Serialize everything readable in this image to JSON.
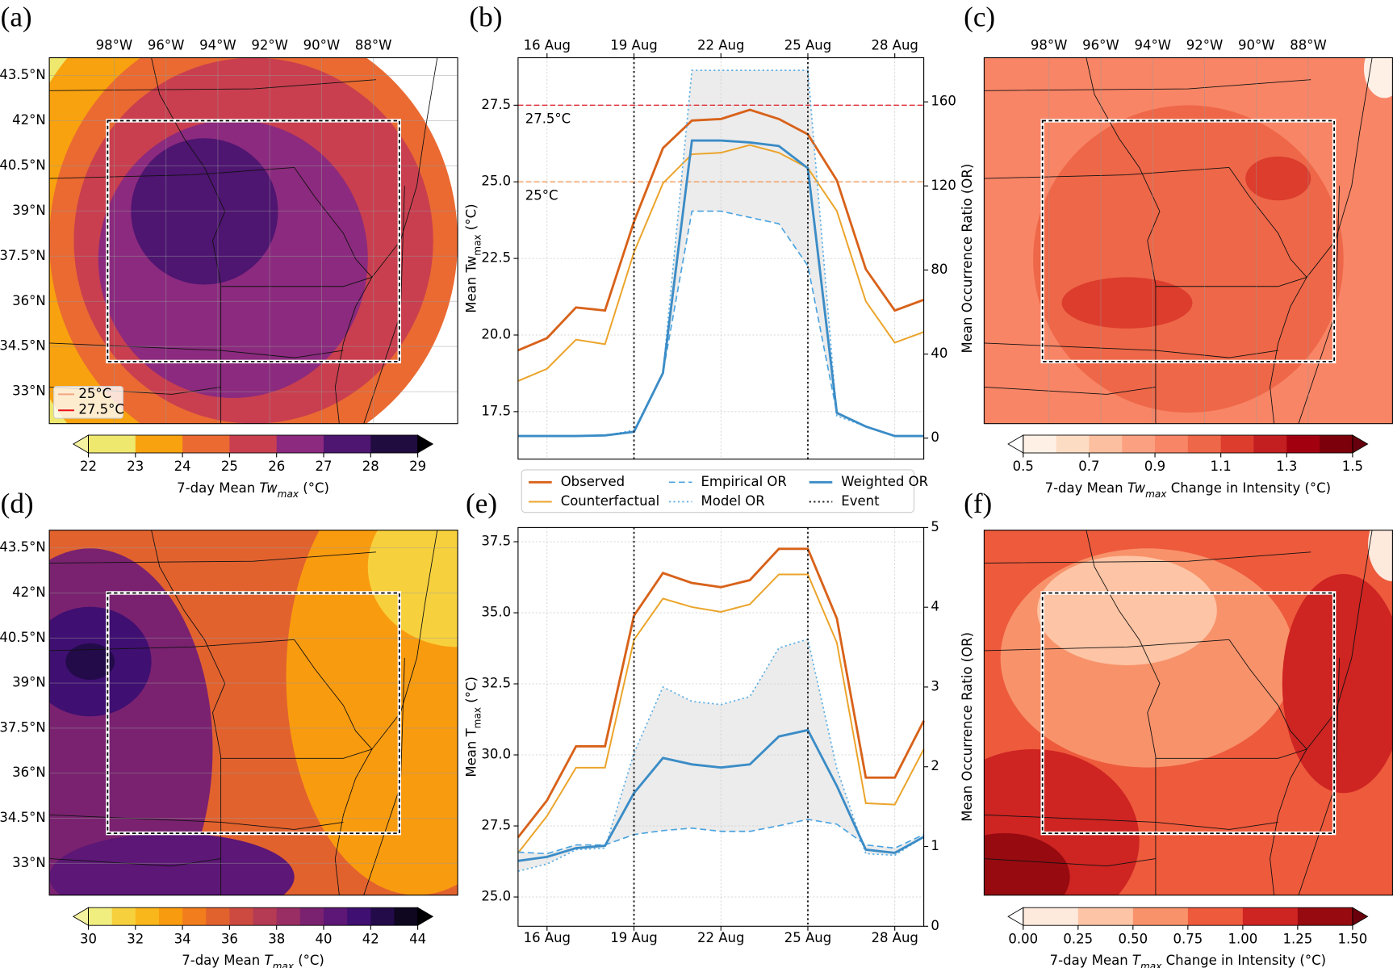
{
  "chart_data": [
    {
      "type": "map",
      "panel_label": "(a)",
      "xlim": [
        -100.5,
        -84.75
      ],
      "ylim": [
        31.94,
        44.09
      ],
      "xticks": [
        {
          "value": -98,
          "label": "98°W"
        },
        {
          "value": -96,
          "label": "96°W"
        },
        {
          "value": -94,
          "label": "94°W"
        },
        {
          "value": -92,
          "label": "92°W"
        },
        {
          "value": -90,
          "label": "90°W"
        },
        {
          "value": -88,
          "label": "88°W"
        }
      ],
      "yticks": [
        {
          "value": 43.5,
          "label": "43.5°N"
        },
        {
          "value": 42,
          "label": "42°N"
        },
        {
          "value": 40.5,
          "label": "40.5°N"
        },
        {
          "value": 39,
          "label": "39°N"
        },
        {
          "value": 37.5,
          "label": "37.5°N"
        },
        {
          "value": 36,
          "label": "36°N"
        },
        {
          "value": 34.5,
          "label": "34.5°N"
        },
        {
          "value": 33,
          "label": "33°N"
        }
      ],
      "box": {
        "lon": [
          -98.25,
          -87
        ],
        "lat": [
          34,
          42
        ]
      },
      "colorbar": {
        "ticks": [
          22,
          23,
          24,
          25,
          26,
          27,
          28,
          29
        ],
        "colors": [
          "#efe86e",
          "#f8a20f",
          "#ea6a32",
          "#c93f4f",
          "#8b2a7e",
          "#4e1571",
          "#200c3f"
        ],
        "extend_colors": [
          "#f5f2a0",
          "#000004"
        ],
        "label": [
          "7-day Mean ",
          "Tw",
          "max",
          " (°C)"
        ],
        "label_styles": [
          "normal",
          "italic",
          "sub",
          "normal"
        ]
      },
      "contour_legend": [
        {
          "label": "25°C",
          "color": "#f4a582"
        },
        {
          "label": "27.5°C",
          "color": "#e8101a"
        }
      ]
    },
    {
      "type": "line",
      "panel_label": "(b)",
      "xaxis_position": "top",
      "categories": [
        null,
        "16 Aug",
        null,
        null,
        "19 Aug",
        null,
        null,
        "22 Aug",
        null,
        null,
        "25 Aug",
        null,
        null,
        "28 Aug",
        null
      ],
      "ylabel": [
        "Mean Tw",
        "max",
        " (°C)"
      ],
      "ylabel_styles": [
        "normal",
        "sub",
        "normal"
      ],
      "y2label": "Mean Occurrence Ratio (OR)",
      "ylim": [
        15.95,
        29.05
      ],
      "yticks": [
        17.5,
        {
          "value": 20,
          "label": "20.0"
        },
        22.5,
        {
          "value": 25,
          "label": "25.0"
        },
        27.5
      ],
      "y2lim": [
        -10,
        181
      ],
      "y2ticks": [
        0,
        40,
        80,
        120,
        160
      ],
      "grid": true,
      "hlines": [
        {
          "value": 27.5,
          "label": "27.5°C",
          "color": "#e0303a"
        },
        {
          "value": 25,
          "label": "25°C",
          "color": "#f39a5a"
        }
      ],
      "band": {
        "series": [
          2,
          3
        ],
        "color": "#ececec"
      },
      "event": {
        "name": "Event",
        "color": "#222222",
        "at": [
          4,
          10
        ]
      },
      "legend": "below",
      "series": [
        {
          "name": "Observed",
          "color": "#d8621a",
          "dash": "solid",
          "width": 2.6,
          "values": [
            19.5,
            19.9,
            20.9,
            20.8,
            23.7,
            26.1,
            27.0,
            27.05,
            27.35,
            27.05,
            26.55,
            25.05,
            22.15,
            20.8,
            21.15
          ]
        },
        {
          "name": "Counterfactual",
          "color": "#eba42a",
          "dash": "solid",
          "width": 1.8,
          "values": [
            18.5,
            18.9,
            19.85,
            19.7,
            22.7,
            24.95,
            25.9,
            25.95,
            26.2,
            25.95,
            25.45,
            24.05,
            21.1,
            19.75,
            20.1
          ]
        },
        {
          "name": "Empirical OR",
          "color": "#4aa3df",
          "dash": "dashed",
          "width": 1.5,
          "axis": "y2",
          "values": [
            1,
            1,
            1,
            1.3,
            3,
            31,
            108,
            108,
            105,
            102,
            82,
            12,
            5.5,
            1,
            1
          ]
        },
        {
          "name": "Model OR",
          "color": "#5aaee5",
          "dash": "dotted",
          "width": 1.5,
          "axis": "y2",
          "values": [
            1,
            1,
            1,
            1.3,
            3.8,
            31,
            175,
            175,
            175,
            175,
            175,
            10.6,
            5.5,
            1,
            1
          ]
        },
        {
          "name": "Weighted OR",
          "color": "#3b8cc6",
          "dash": "solid",
          "width": 2.6,
          "axis": "y2",
          "values": [
            1,
            1,
            1,
            1.3,
            3,
            31,
            141.6,
            141.6,
            140.7,
            139,
            128.4,
            12,
            5.5,
            1,
            1
          ]
        }
      ]
    },
    {
      "type": "map",
      "panel_label": "(c)",
      "xlim": [
        -100.5,
        -84.75
      ],
      "ylim": [
        31.94,
        44.09
      ],
      "xticks": [
        {
          "value": -98,
          "label": "98°W"
        },
        {
          "value": -96,
          "label": "96°W"
        },
        {
          "value": -94,
          "label": "94°W"
        },
        {
          "value": -92,
          "label": "92°W"
        },
        {
          "value": -90,
          "label": "90°W"
        },
        {
          "value": -88,
          "label": "88°W"
        }
      ],
      "box": {
        "lon": [
          -98.25,
          -87
        ],
        "lat": [
          34,
          42
        ]
      },
      "colorbar": {
        "ticks": [
          0.5,
          0.7,
          0.9,
          1.1,
          1.3,
          1.5
        ],
        "colors": [
          "#fff0e6",
          "#fddcc4",
          "#fcbf9f",
          "#fca082",
          "#f88566",
          "#ee6748",
          "#dc3d2d",
          "#c31e20",
          "#a3000f",
          "#7c000b"
        ],
        "extend_colors": [
          "#ffffff",
          "#67000d"
        ],
        "label": [
          "7-day Mean ",
          "Tw",
          "max",
          " Change in Intensity (°C)"
        ],
        "label_styles": [
          "normal",
          "italic",
          "sub",
          "normal"
        ]
      }
    },
    {
      "type": "map",
      "panel_label": "(d)",
      "xlim": [
        -100.5,
        -84.75
      ],
      "ylim": [
        31.94,
        44.09
      ],
      "yticks": [
        {
          "value": 43.5,
          "label": "43.5°N"
        },
        {
          "value": 42,
          "label": "42°N"
        },
        {
          "value": 40.5,
          "label": "40.5°N"
        },
        {
          "value": 39,
          "label": "39°N"
        },
        {
          "value": 37.5,
          "label": "37.5°N"
        },
        {
          "value": 36,
          "label": "36°N"
        },
        {
          "value": 34.5,
          "label": "34.5°N"
        },
        {
          "value": 33,
          "label": "33°N"
        }
      ],
      "box": {
        "lon": [
          -98.25,
          -87
        ],
        "lat": [
          34,
          42
        ]
      },
      "colorbar": {
        "ticks": [
          30,
          32,
          34,
          36,
          38,
          40,
          42,
          44
        ],
        "colors": [
          "#f1ee80",
          "#f7d13d",
          "#fab71b",
          "#f99b0f",
          "#f17d1c",
          "#e2622e",
          "#cd4a41",
          "#b43b53",
          "#982e63",
          "#7a2270",
          "#5d1776",
          "#3f0f72",
          "#230b4a",
          "#0f0620"
        ],
        "extend_colors": [
          "#f5f2a0",
          "#000004"
        ],
        "label": [
          "7-day Mean ",
          "T",
          "max",
          " (°C)"
        ],
        "label_styles": [
          "normal",
          "italic",
          "sub",
          "normal"
        ]
      }
    },
    {
      "type": "line",
      "panel_label": "(e)",
      "xaxis_position": "bottom",
      "categories": [
        null,
        "16 Aug",
        null,
        null,
        "19 Aug",
        null,
        null,
        "22 Aug",
        null,
        null,
        "25 Aug",
        null,
        null,
        "28 Aug",
        null
      ],
      "ylabel": [
        "Mean T",
        "max",
        " (°C)"
      ],
      "ylabel_styles": [
        "normal",
        "sub",
        "normal"
      ],
      "y2label": "Mean Occurrence Ratio (OR)",
      "ylim": [
        23.97,
        38.0
      ],
      "yticks": [
        {
          "value": 25,
          "label": "25.0"
        },
        27.5,
        {
          "value": 30,
          "label": "30.0"
        },
        32.5,
        {
          "value": 35,
          "label": "35.0"
        },
        37.5
      ],
      "y2lim": [
        0,
        5
      ],
      "y2ticks": [
        0,
        1,
        2,
        3,
        4,
        5
      ],
      "grid": true,
      "band": {
        "series": [
          2,
          3
        ],
        "color": "#ececec"
      },
      "event": {
        "color": "#222222",
        "at": [
          4,
          10
        ]
      },
      "series": [
        {
          "color": "#d8621a",
          "dash": "solid",
          "width": 2.6,
          "values": [
            27.1,
            28.4,
            30.3,
            30.3,
            34.9,
            36.4,
            36.05,
            35.9,
            36.15,
            37.25,
            37.25,
            34.8,
            29.2,
            29.2,
            31.2
          ]
        },
        {
          "color": "#eba42a",
          "dash": "solid",
          "width": 1.8,
          "values": [
            26.55,
            27.85,
            29.55,
            29.55,
            34.05,
            35.5,
            35.2,
            35.03,
            35.3,
            36.35,
            36.35,
            33.95,
            28.3,
            28.25,
            30.2
          ]
        },
        {
          "color": "#4aa3df",
          "dash": "dashed",
          "width": 1.5,
          "axis": "y2",
          "values": [
            0.93,
            0.91,
            1.02,
            1.02,
            1.15,
            1.2,
            1.23,
            1.19,
            1.19,
            1.26,
            1.34,
            1.28,
            1.02,
            0.98,
            1.15
          ]
        },
        {
          "color": "#5aaee5",
          "dash": "dotted",
          "width": 1.5,
          "axis": "y2",
          "values": [
            0.69,
            0.78,
            0.96,
            0.98,
            2.17,
            3.0,
            2.82,
            2.78,
            2.88,
            3.49,
            3.6,
            1.98,
            0.91,
            0.89,
            1.12
          ]
        },
        {
          "color": "#3b8cc6",
          "dash": "solid",
          "width": 2.6,
          "axis": "y2",
          "values": [
            0.82,
            0.87,
            0.98,
            1.01,
            1.67,
            2.11,
            2.03,
            1.99,
            2.03,
            2.38,
            2.46,
            1.76,
            0.96,
            0.92,
            1.12
          ]
        }
      ]
    },
    {
      "type": "map",
      "panel_label": "(f)",
      "xlim": [
        -100.5,
        -84.75
      ],
      "ylim": [
        31.94,
        44.09
      ],
      "box": {
        "lon": [
          -98.25,
          -87
        ],
        "lat": [
          34,
          42
        ]
      },
      "colorbar": {
        "ticks": [
          {
            "value": 0,
            "label": "0.00"
          },
          0.25,
          {
            "value": 0.5,
            "label": "0.50"
          },
          0.75,
          {
            "value": 1,
            "label": "1.00"
          },
          1.25,
          {
            "value": 1.5,
            "label": "1.50"
          }
        ],
        "colors": [
          "#fee9dd",
          "#fdc4a5",
          "#f8926a",
          "#ee5a3c",
          "#ce2422",
          "#960a10"
        ],
        "extend_colors": [
          "#ffffff",
          "#6a000c"
        ],
        "label": [
          "7-day Mean ",
          "T",
          "max",
          " Change in Intensity (°C)"
        ],
        "label_styles": [
          "normal",
          "italic",
          "sub",
          "normal"
        ]
      }
    }
  ]
}
